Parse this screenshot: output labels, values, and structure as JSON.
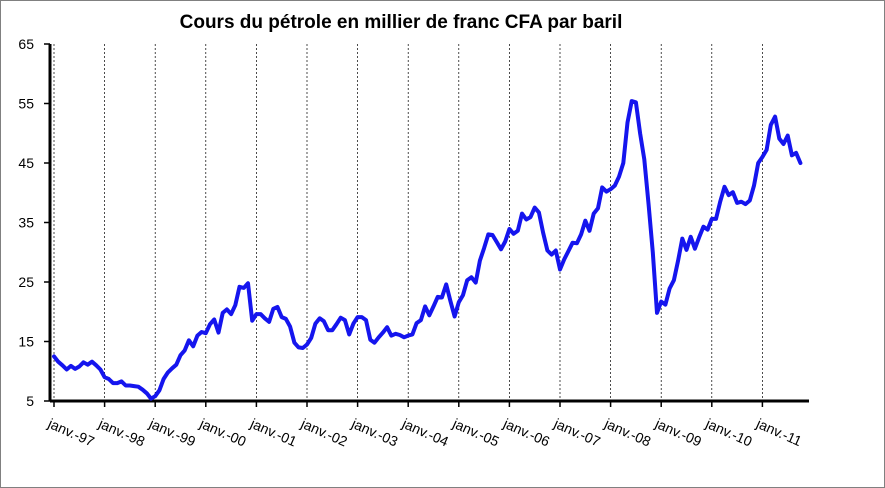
{
  "chart_data": {
    "type": "line",
    "title": "Cours du pétrole en millier de franc CFA par baril",
    "xlabel": "",
    "ylabel": "",
    "ylim": [
      5,
      65
    ],
    "yticks": [
      5,
      15,
      25,
      35,
      45,
      55,
      65
    ],
    "x_tick_labels": [
      "janv.-97",
      "janv.-98",
      "janv.-99",
      "janv.-00",
      "janv.-01",
      "janv.-02",
      "janv.-03",
      "janv.-04",
      "janv.-05",
      "janv.-06",
      "janv.-07",
      "janv.-08",
      "janv.-09",
      "janv.-10",
      "janv.-11"
    ],
    "grid": "vertical",
    "legend": "none",
    "colors": {
      "line": "#1515ee",
      "grid": "#000000",
      "axis": "#000000"
    },
    "series": [
      {
        "name": "",
        "start": "1997-01",
        "frequency": "monthly",
        "values": [
          12.5,
          11.6,
          11.0,
          10.3,
          10.9,
          10.4,
          10.8,
          11.5,
          11.1,
          11.6,
          11.0,
          10.3,
          9.0,
          8.7,
          8.0,
          8.0,
          8.3,
          7.6,
          7.6,
          7.5,
          7.4,
          6.9,
          6.3,
          5.4,
          5.8,
          6.8,
          8.7,
          9.8,
          10.5,
          11.1,
          12.7,
          13.5,
          15.2,
          14.2,
          16.0,
          16.6,
          16.4,
          17.9,
          18.7,
          16.5,
          19.8,
          20.4,
          19.6,
          21.1,
          24.2,
          24.0,
          24.8,
          18.5,
          19.6,
          19.6,
          18.9,
          18.3,
          20.5,
          20.8,
          19.1,
          18.8,
          17.5,
          14.8,
          14.0,
          13.9,
          14.5,
          15.6,
          18.0,
          18.9,
          18.4,
          16.9,
          16.9,
          17.9,
          19.0,
          18.6,
          16.2,
          18.0,
          19.1,
          19.1,
          18.6,
          15.3,
          14.8,
          15.7,
          16.5,
          17.4,
          16.0,
          16.3,
          16.1,
          15.7,
          16.0,
          16.2,
          18.1,
          18.6,
          20.9,
          19.4,
          20.9,
          22.5,
          22.4,
          24.6,
          21.8,
          19.2,
          21.6,
          22.8,
          25.3,
          25.8,
          24.9,
          28.6,
          30.7,
          33.0,
          32.9,
          31.7,
          30.5,
          31.8,
          33.9,
          33.1,
          33.6,
          36.5,
          35.5,
          35.9,
          37.5,
          36.7,
          33.3,
          30.3,
          29.6,
          30.3,
          27.1,
          28.8,
          30.2,
          31.6,
          31.5,
          33.0,
          35.3,
          33.6,
          36.5,
          37.4,
          40.9,
          40.2,
          40.6,
          41.2,
          42.7,
          45.0,
          51.8,
          55.4,
          55.2,
          50.0,
          45.6,
          38.0,
          30.0,
          19.8,
          21.7,
          21.2,
          23.9,
          25.3,
          28.6,
          32.3,
          30.4,
          32.6,
          30.6,
          32.5,
          34.3,
          33.8,
          35.6,
          35.6,
          38.5,
          41.0,
          39.6,
          40.1,
          38.3,
          38.5,
          38.1,
          38.7,
          41.2,
          45.0,
          46.0,
          47.2,
          51.4,
          52.8,
          49.1,
          48.2,
          49.6,
          46.3,
          46.7,
          45.0
        ]
      }
    ]
  }
}
